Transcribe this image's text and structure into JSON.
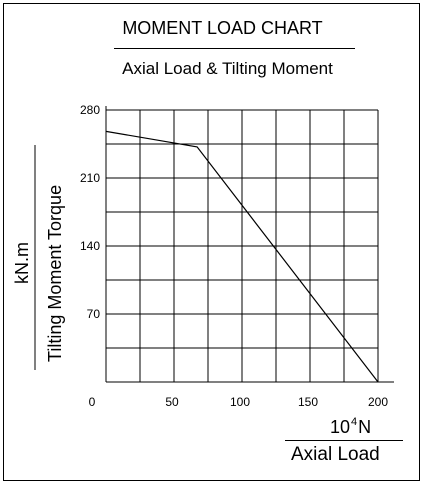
{
  "chart_data": {
    "type": "line",
    "title": "MOMENT LOAD CHART",
    "subtitle": "Axial Load & Tilting Moment",
    "xlabel": "Axial Load",
    "xunit_base": "10",
    "xunit_exp": "4",
    "xunit_suffix": "N",
    "ylabel": "Tilting Moment Torque",
    "yunit": "kN.m",
    "xlim": [
      0,
      200
    ],
    "ylim": [
      0,
      280
    ],
    "xticks": [
      0,
      50,
      100,
      150,
      200
    ],
    "yticks": [
      70,
      140,
      210,
      280
    ],
    "grid": true,
    "series": [
      {
        "x": [
          0,
          67,
          200
        ],
        "y": [
          258,
          242,
          0
        ]
      }
    ]
  }
}
